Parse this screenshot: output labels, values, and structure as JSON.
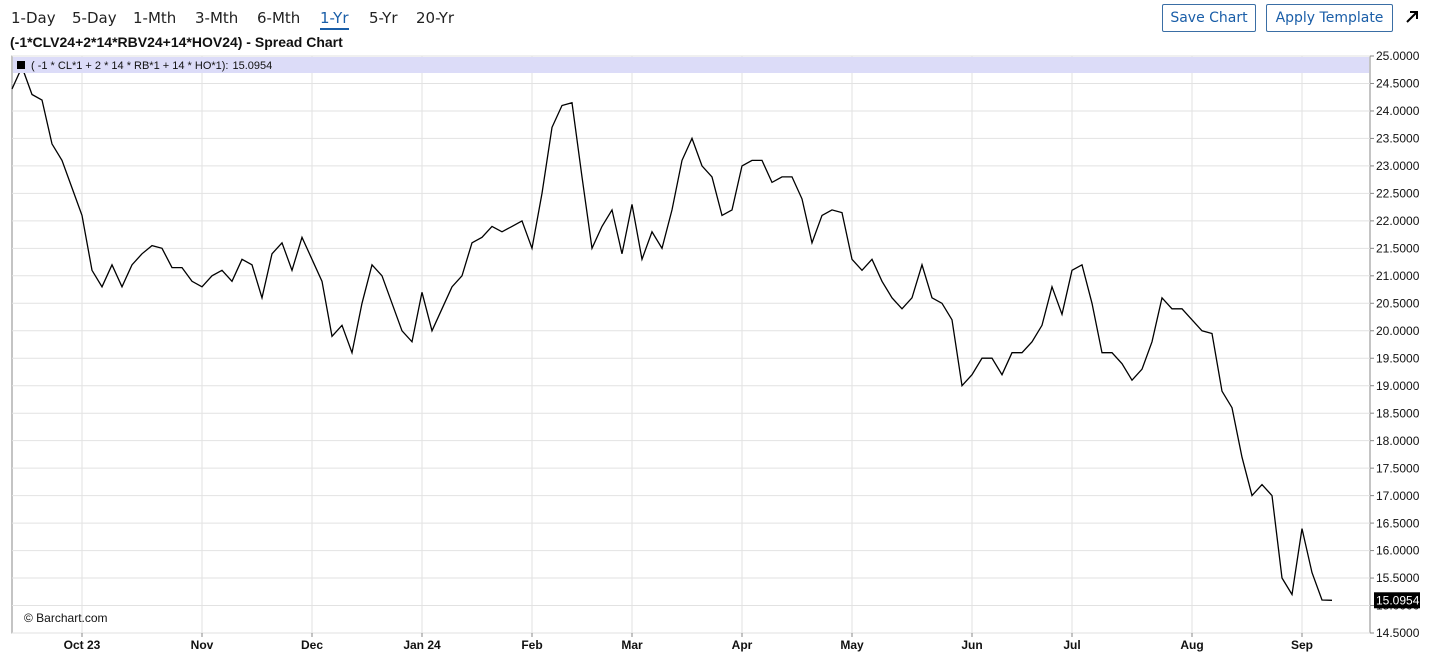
{
  "toolbar": {
    "ranges": [
      "1-Day",
      "5-Day",
      "1-Mth",
      "3-Mth",
      "6-Mth",
      "1-Yr",
      "5-Yr",
      "20-Yr"
    ],
    "active_range": 5,
    "buttons": [
      "Save Chart",
      "Apply Template"
    ]
  },
  "chart_data": {
    "type": "line",
    "title": "(-1*CLV24+2*14*RBV24+14*HOV24) - Spread Chart",
    "credit": "© Barchart.com",
    "categories": [
      null,
      null,
      null,
      null,
      null,
      null,
      null,
      "Oct 23",
      null,
      null,
      null,
      null,
      null,
      null,
      null,
      null,
      null,
      null,
      null,
      "Nov",
      null,
      null,
      null,
      null,
      null,
      null,
      null,
      null,
      null,
      null,
      "Dec",
      null,
      null,
      null,
      null,
      null,
      null,
      null,
      null,
      null,
      null,
      "Jan 24",
      null,
      null,
      null,
      null,
      null,
      null,
      null,
      null,
      null,
      null,
      "Feb",
      null,
      null,
      null,
      null,
      null,
      null,
      null,
      null,
      null,
      "Mar",
      null,
      null,
      null,
      null,
      null,
      null,
      null,
      null,
      null,
      null,
      "Apr",
      null,
      null,
      null,
      null,
      null,
      null,
      null,
      null,
      null,
      null,
      "May",
      null,
      null,
      null,
      null,
      null,
      null,
      null,
      null,
      null,
      null,
      null,
      "Jun",
      null,
      null,
      null,
      null,
      null,
      null,
      null,
      null,
      null,
      "Jul",
      null,
      null,
      null,
      null,
      null,
      null,
      null,
      null,
      null,
      null,
      null,
      "Aug",
      null,
      null,
      null,
      null,
      null,
      null,
      null,
      null,
      null,
      null,
      "Sep",
      null,
      null,
      null
    ],
    "series": [
      {
        "name": "( -1 * CL*1 + 2 * 14 * RB*1 + 14 * HO*1):",
        "color": "#000000",
        "values": [
          24.4,
          24.8,
          24.3,
          24.2,
          23.4,
          23.1,
          22.6,
          22.1,
          21.1,
          20.8,
          21.2,
          20.8,
          21.2,
          21.4,
          21.55,
          21.5,
          21.15,
          21.15,
          20.9,
          20.8,
          21.0,
          21.1,
          20.9,
          21.3,
          21.2,
          20.6,
          21.4,
          21.6,
          21.1,
          21.7,
          21.3,
          20.9,
          19.9,
          20.1,
          19.6,
          20.5,
          21.2,
          21.0,
          20.5,
          20.0,
          19.8,
          20.7,
          20.0,
          20.4,
          20.8,
          21.0,
          21.6,
          21.7,
          21.9,
          21.8,
          21.9,
          22.0,
          21.5,
          22.5,
          23.7,
          24.1,
          24.15,
          22.8,
          21.5,
          21.9,
          22.2,
          21.4,
          22.3,
          21.3,
          21.8,
          21.5,
          22.2,
          23.1,
          23.5,
          23.0,
          22.8,
          22.1,
          22.2,
          23.0,
          23.1,
          23.1,
          22.7,
          22.8,
          22.8,
          22.4,
          21.6,
          22.1,
          22.2,
          22.15,
          21.3,
          21.1,
          21.3,
          20.9,
          20.6,
          20.4,
          20.6,
          21.2,
          20.6,
          20.5,
          20.2,
          19.0,
          19.2,
          19.5,
          19.5,
          19.2,
          19.6,
          19.6,
          19.8,
          20.1,
          20.8,
          20.3,
          21.1,
          21.2,
          20.5,
          19.6,
          19.6,
          19.4,
          19.1,
          19.3,
          19.8,
          20.6,
          20.4,
          20.4,
          20.2,
          20.0,
          19.95,
          18.9,
          18.6,
          17.7,
          17.0,
          17.2,
          17.0,
          15.5,
          15.2,
          16.4,
          15.6,
          15.1,
          15.0954
        ]
      }
    ],
    "ylim": [
      14.5,
      25.0
    ],
    "yticks": [
      {
        "value": 14.5,
        "label": "14.5000"
      },
      {
        "value": 15,
        "label": "15.0000"
      },
      {
        "value": 15.5,
        "label": "15.5000"
      },
      {
        "value": 16,
        "label": "16.0000"
      },
      {
        "value": 16.5,
        "label": "16.5000"
      },
      {
        "value": 17,
        "label": "17.0000"
      },
      {
        "value": 17.5,
        "label": "17.5000"
      },
      {
        "value": 18,
        "label": "18.0000"
      },
      {
        "value": 18.5,
        "label": "18.5000"
      },
      {
        "value": 19,
        "label": "19.0000"
      },
      {
        "value": 19.5,
        "label": "19.5000"
      },
      {
        "value": 20,
        "label": "20.0000"
      },
      {
        "value": 20.5,
        "label": "20.5000"
      },
      {
        "value": 21,
        "label": "21.0000"
      },
      {
        "value": 21.5,
        "label": "21.5000"
      },
      {
        "value": 22,
        "label": "22.0000"
      },
      {
        "value": 22.5,
        "label": "22.5000"
      },
      {
        "value": 23,
        "label": "23.0000"
      },
      {
        "value": 23.5,
        "label": "23.5000"
      },
      {
        "value": 24,
        "label": "24.0000"
      },
      {
        "value": 24.5,
        "label": "24.5000"
      },
      {
        "value": 25,
        "label": "25.0000"
      }
    ],
    "grid": true
  }
}
